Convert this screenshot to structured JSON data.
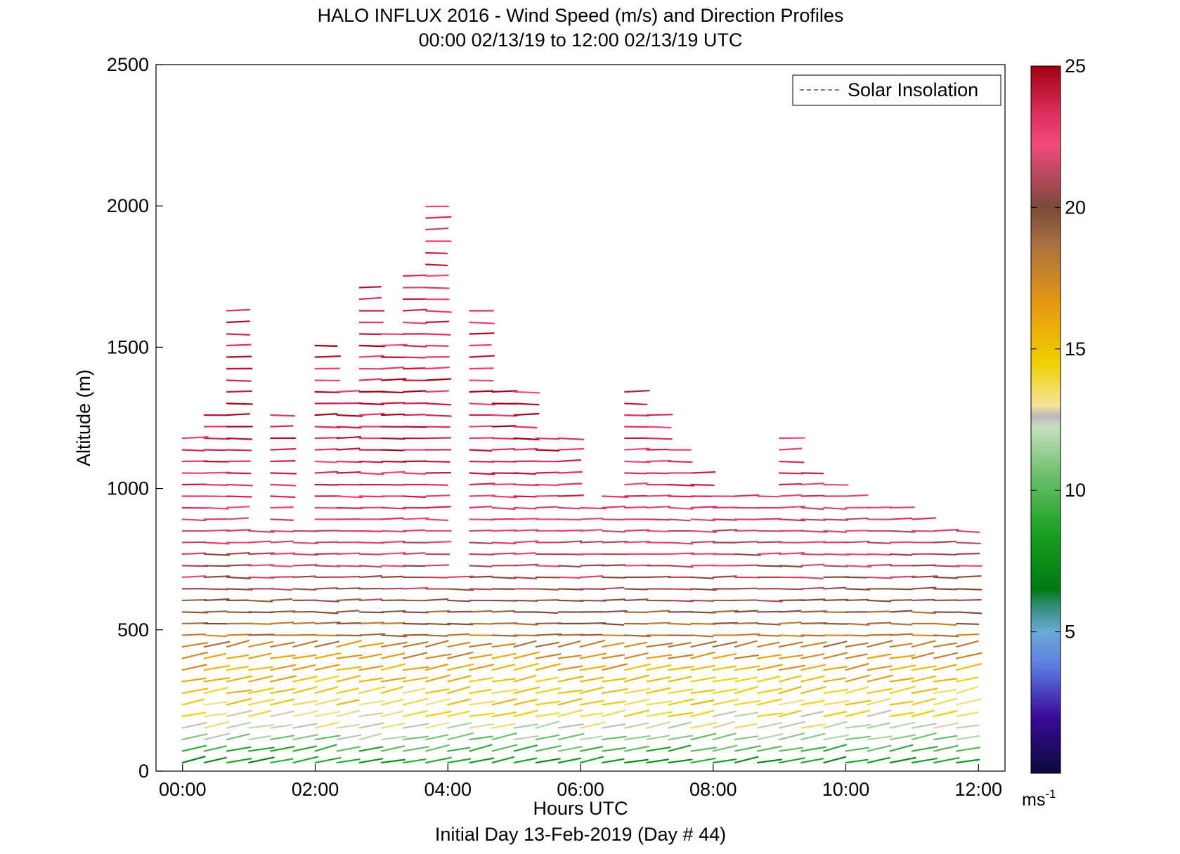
{
  "chart_data": {
    "type": "wind-barb-profile",
    "title": "HALO INFLUX 2016 - Wind Speed (m/s) and Direction Profiles",
    "subtitle": "00:00 02/13/19 to 12:00 02/13/19  UTC",
    "xlabel": "Hours UTC",
    "xlabel2": "Initial Day 13-Feb-2019 (Day # 44)",
    "ylabel": "Altitude (m)",
    "x_ticks": [
      "00:00",
      "02:00",
      "04:00",
      "06:00",
      "08:00",
      "10:00",
      "12:00"
    ],
    "y_ticks": [
      "0",
      "500",
      "1000",
      "1500",
      "2000",
      "2500"
    ],
    "xlim": [
      -0.4,
      12.4
    ],
    "ylim": [
      0,
      2500
    ],
    "legend": {
      "label": "Solar Insolation",
      "placement": "top-right"
    },
    "colorbar": {
      "range": [
        0,
        25
      ],
      "ticks": [
        "5",
        "10",
        "15",
        "20",
        "25"
      ],
      "unit_base": "ms",
      "unit_exp": "-1"
    },
    "profile_times_hours": [
      0.0,
      0.33,
      0.67,
      1.0,
      1.33,
      1.67,
      2.0,
      2.33,
      2.67,
      3.0,
      3.33,
      3.67,
      4.0,
      4.33,
      4.67,
      5.0,
      5.33,
      5.67,
      6.0,
      6.33,
      6.67,
      7.0,
      7.33,
      7.67,
      8.0,
      8.33,
      8.67,
      9.0,
      9.33,
      9.67,
      10.0,
      10.33,
      10.67,
      11.0,
      11.33,
      11.67
    ],
    "profile_top_altitude_m": [
      1210,
      1290,
      1665,
      870,
      1280,
      870,
      1530,
      1360,
      1740,
      1580,
      1790,
      2000,
      700,
      1665,
      1370,
      1370,
      1210,
      1210,
      950,
      1000,
      1370,
      1260,
      1160,
      1080,
      1010,
      1010,
      990,
      1210,
      1080,
      1050,
      980,
      950,
      940,
      910,
      880,
      870
    ],
    "level_spacing_m": 41,
    "speed_profile_m_s": [
      {
        "altitude": 30,
        "speed": 8
      },
      {
        "altitude": 100,
        "speed": 11
      },
      {
        "altitude": 200,
        "speed": 14
      },
      {
        "altitude": 300,
        "speed": 15
      },
      {
        "altitude": 400,
        "speed": 17
      },
      {
        "altitude": 500,
        "speed": 18.5
      },
      {
        "altitude": 600,
        "speed": 20
      },
      {
        "altitude": 700,
        "speed": 21
      },
      {
        "altitude": 850,
        "speed": 22
      },
      {
        "altitude": 1000,
        "speed": 23
      },
      {
        "altitude": 1300,
        "speed": 24
      },
      {
        "altitude": 2000,
        "speed": 22.5
      }
    ],
    "direction": "westerly (barbs pointing east, slight upward tilt near surface)"
  }
}
